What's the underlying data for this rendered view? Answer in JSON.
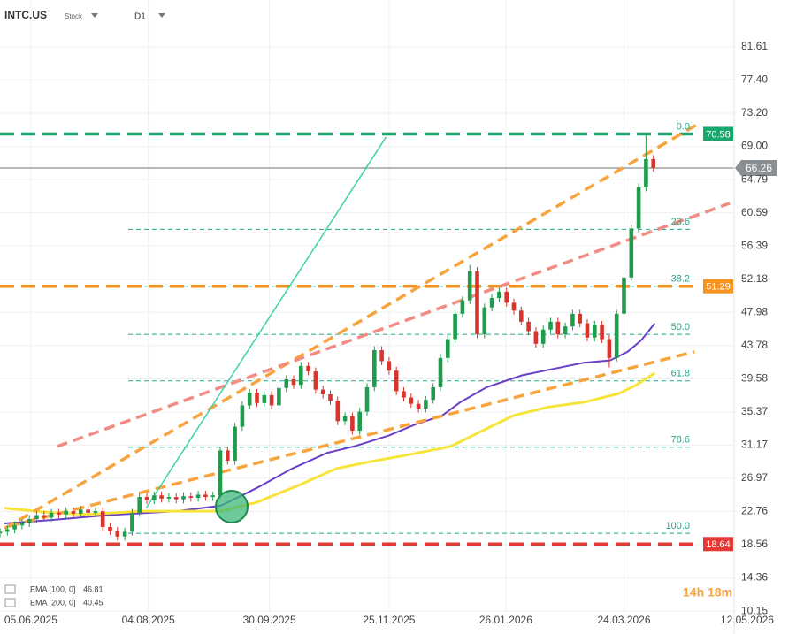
{
  "chart_data": {
    "type": "candlestick",
    "symbol": "INTC.US",
    "asset_type": "Stock",
    "timeframe": "D1",
    "countdown": "14h 18m",
    "xlim": [
      0,
      105
    ],
    "ylim": [
      10.05,
      87.54
    ],
    "xticks": [
      {
        "value": 4.2,
        "label": "05.06.2025"
      },
      {
        "value": 20.2,
        "label": "04.08.2025"
      },
      {
        "value": 36.7,
        "label": "30.09.2025"
      },
      {
        "value": 53,
        "label": "25.11.2025"
      },
      {
        "value": 68.9,
        "label": "26.01.2026"
      },
      {
        "value": 85,
        "label": "24.03.2026"
      },
      {
        "value": 101.8,
        "label": "12.05.2026"
      }
    ],
    "yticks": [
      81.61,
      {
        "value": 77.4,
        "label": "77.40"
      },
      {
        "value": 73.2,
        "label": "73.20"
      },
      {
        "value": 69,
        "label": "69.00"
      },
      64.79,
      60.59,
      56.39,
      52.18,
      47.98,
      43.78,
      39.58,
      35.37,
      31.17,
      26.97,
      22.76,
      18.56,
      14.36,
      10.15
    ],
    "grid": true,
    "up_color": "#1f9d4c",
    "down_color": "#d9342b",
    "candles": {
      "open": [
        20.0,
        20.2,
        20.5,
        21.0,
        21.3,
        21.8,
        22.3,
        22.0,
        22.6,
        22.4,
        22.8,
        22.5,
        23.0,
        22.6,
        22.8,
        20.8,
        20.3,
        19.6,
        20.2,
        22.6,
        24.6,
        24.2,
        24.8,
        24.4,
        24.6,
        24.3,
        24.7,
        24.5,
        24.9,
        24.6,
        24.8,
        30.5,
        29.2,
        33.5,
        36.2,
        37.8,
        36.5,
        37.5,
        36.2,
        38.4,
        39.5,
        38.8,
        41.2,
        40.5,
        38.2,
        37.6,
        36.8,
        34.2,
        34.8,
        33.0,
        35.4,
        38.5,
        43.2,
        41.8,
        40.6,
        38.0,
        37.2,
        36.4,
        35.8,
        36.9,
        38.5,
        42.2,
        44.6,
        47.8,
        49.5,
        53.2,
        45.2,
        48.6,
        49.8,
        50.6,
        49.2,
        48.2,
        46.8,
        45.6,
        44.0,
        45.8,
        46.8,
        45.2,
        46.2,
        47.8,
        46.6,
        44.8,
        46.4,
        44.6,
        42.2,
        47.8,
        52.4,
        58.6,
        63.8,
        67.4
      ],
      "high": [
        20.7,
        21.0,
        21.5,
        21.8,
        22.3,
        22.8,
        22.8,
        23.1,
        23.1,
        23.3,
        23.3,
        23.5,
        23.5,
        23.3,
        23.3,
        21.3,
        20.8,
        20.7,
        23.1,
        25.1,
        25.1,
        25.3,
        25.3,
        25.1,
        25.1,
        25.2,
        25.2,
        25.4,
        25.4,
        25.3,
        31.0,
        31.0,
        34.0,
        36.7,
        38.3,
        38.3,
        38.0,
        38.0,
        38.9,
        40.0,
        40.0,
        41.7,
        41.7,
        41.0,
        38.7,
        38.1,
        37.3,
        35.3,
        35.3,
        35.9,
        39.0,
        43.7,
        43.7,
        42.3,
        41.1,
        38.5,
        37.7,
        36.9,
        37.4,
        39.0,
        42.7,
        45.1,
        48.3,
        50.0,
        54.0,
        53.7,
        49.1,
        50.3,
        51.1,
        51.1,
        49.7,
        48.7,
        47.3,
        46.1,
        46.3,
        47.3,
        47.3,
        46.7,
        48.3,
        48.3,
        47.1,
        46.9,
        46.9,
        45.1,
        48.3,
        52.9,
        59.1,
        64.3,
        70.6,
        67.9
      ],
      "low": [
        19.5,
        19.7,
        20.0,
        20.5,
        20.8,
        21.3,
        21.5,
        21.5,
        21.9,
        21.9,
        22.0,
        22.0,
        22.1,
        22.1,
        20.3,
        19.8,
        19.1,
        19.1,
        19.7,
        22.1,
        23.7,
        23.7,
        23.9,
        23.9,
        23.8,
        23.8,
        24.0,
        24.0,
        24.1,
        24.1,
        24.3,
        28.7,
        28.7,
        33.0,
        35.7,
        36.0,
        36.0,
        35.7,
        35.7,
        37.9,
        38.3,
        38.3,
        40.0,
        37.7,
        37.1,
        36.3,
        33.7,
        33.7,
        32.5,
        32.5,
        34.9,
        38.0,
        41.3,
        40.1,
        37.5,
        36.7,
        35.9,
        35.3,
        35.3,
        36.4,
        38.0,
        41.7,
        44.1,
        47.3,
        49.0,
        44.7,
        44.7,
        48.1,
        49.3,
        48.7,
        47.7,
        46.3,
        45.1,
        43.5,
        43.5,
        45.3,
        44.7,
        44.7,
        45.7,
        46.1,
        44.3,
        44.3,
        44.1,
        41.0,
        41.7,
        47.3,
        51.9,
        58.1,
        63.3,
        65.8
      ],
      "close": [
        20.2,
        20.5,
        21.0,
        21.3,
        21.8,
        22.3,
        22.0,
        22.6,
        22.4,
        22.8,
        22.5,
        23.0,
        22.6,
        22.8,
        20.8,
        20.3,
        19.6,
        20.2,
        22.6,
        24.6,
        24.2,
        24.8,
        24.4,
        24.6,
        24.3,
        24.7,
        24.5,
        24.9,
        24.6,
        24.8,
        30.5,
        29.2,
        33.5,
        36.2,
        37.8,
        36.5,
        37.5,
        36.2,
        38.4,
        39.5,
        38.8,
        41.2,
        40.5,
        38.2,
        37.6,
        36.8,
        34.2,
        34.8,
        33.0,
        35.4,
        38.5,
        43.2,
        41.8,
        40.6,
        38.0,
        37.2,
        36.4,
        35.8,
        36.9,
        38.5,
        42.2,
        44.6,
        47.8,
        49.5,
        53.2,
        45.2,
        48.6,
        49.8,
        50.6,
        49.2,
        48.2,
        46.8,
        45.6,
        44.0,
        45.8,
        46.8,
        45.2,
        46.2,
        47.8,
        46.6,
        44.8,
        46.4,
        44.6,
        42.2,
        47.8,
        52.4,
        58.6,
        63.8,
        67.4,
        66.3
      ]
    },
    "current_price": {
      "value": 66.26,
      "color": "#8a8f94"
    },
    "levels": {
      "values": [
        70.58,
        51.29,
        18.64
      ],
      "colors": [
        "#17a86b",
        "#f7931e",
        "#e53935"
      ]
    },
    "fibonacci": {
      "ratios": [
        "0.0",
        "23.6",
        "38.2",
        "50.0",
        "61.8",
        "78.6",
        "100.0"
      ],
      "prices": [
        70.58,
        58.5,
        51.29,
        45.2,
        39.3,
        30.9,
        20.0
      ],
      "color": "#22a88e"
    },
    "trendlines": [
      {
        "color": "#f7a43c",
        "x": [
          0.6,
          95.2
        ],
        "y": [
          20.6,
          71.9
        ]
      },
      {
        "color": "#f7a43c",
        "x": [
          1.2,
          94.6
        ],
        "y": [
          20.9,
          43.0
        ]
      },
      {
        "color": "#f28b82",
        "x": [
          7.8,
          99.4
        ],
        "y": [
          31.0,
          61.8
        ]
      },
      {
        "color": "#3fd1a4",
        "x": [
          19.9,
          52.6
        ],
        "y": [
          23.2,
          70.2
        ]
      }
    ],
    "series": [
      {
        "name": "EMA [100, 0]",
        "last": 46.81,
        "color": "#6a3fc8",
        "x": [
          0.6,
          7.2,
          14.5,
          24.1,
          30.1,
          34.9,
          39.8,
          44.6,
          48.2,
          53.0,
          56.6,
          60.2,
          62.7,
          66.3,
          71.1,
          74.7,
          79.5,
          83.1,
          85.5,
          87.3,
          89.2
        ],
        "values": [
          21.25,
          21.7,
          22.3,
          22.8,
          23.5,
          25.7,
          28.2,
          30.2,
          31.0,
          32.4,
          33.8,
          34.9,
          36.6,
          38.5,
          40.0,
          40.7,
          41.6,
          41.9,
          43.0,
          44.4,
          46.6
        ]
      },
      {
        "name": "EMA [200, 0]",
        "last": 40.45,
        "color": "#f7e43a",
        "x": [
          0.6,
          7.2,
          12.0,
          19.3,
          30.1,
          34.9,
          41.0,
          45.8,
          50.6,
          55.4,
          61.4,
          65.1,
          69.9,
          74.7,
          79.5,
          84.3,
          86.7,
          89.2
        ],
        "values": [
          23.2,
          22.6,
          22.4,
          22.8,
          22.8,
          23.9,
          26.2,
          28.2,
          29.1,
          29.9,
          31.0,
          32.7,
          34.9,
          36.0,
          36.6,
          37.7,
          38.8,
          40.3
        ]
      }
    ]
  }
}
